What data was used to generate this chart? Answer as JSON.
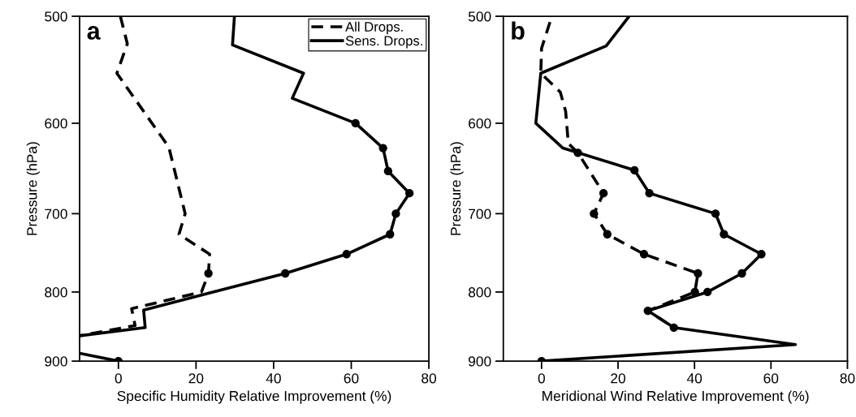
{
  "chart_data": [
    {
      "type": "line",
      "xlabel": "Specific Humidity Relative Improvement (%)",
      "ylabel": "Pressure (hPa)",
      "annotations": [
        "a"
      ],
      "xlim": [
        -10,
        80
      ],
      "xticks": [
        0,
        20,
        40,
        60,
        80
      ],
      "ylim": [
        900,
        500
      ],
      "yticks": [
        500,
        600,
        700,
        800,
        900
      ],
      "log": "y",
      "grid": false,
      "legend": "top right",
      "series": [
        {
          "name": "All Drops.",
          "color": "#000000",
          "line_style": "dashed",
          "marker": "none",
          "x": [
            0.5,
            2.3,
            -0.4,
            13.0,
            17.2,
            15.6,
            23.5,
            23.2,
            21.4,
            3.4,
            4.3,
            -10
          ],
          "values": [
            500,
            524,
            551,
            625,
            700,
            725,
            750,
            775,
            800,
            823,
            847,
            862
          ]
        },
        {
          "name": "Sens. Drops.",
          "color": "#000000",
          "line_style": "solid",
          "marker": "none",
          "x": [
            29.9,
            29.4,
            47.7,
            44.8,
            61.1,
            68.2,
            69.5,
            75.0,
            71.5,
            70.0,
            58.8,
            43.0,
            6.5,
            6.9,
            -10,
            null,
            -10,
            0
          ],
          "values": [
            500,
            525,
            551,
            575,
            600,
            626,
            651,
            676,
            700,
            725,
            750,
            775,
            825,
            850,
            862,
            null,
            888,
            900
          ]
        },
        {
          "type": "scatter",
          "color": "#000000",
          "marker": "circle",
          "x": [
            23.2
          ],
          "values": [
            775
          ]
        },
        {
          "type": "scatter",
          "color": "#000000",
          "marker": "circle",
          "x": [
            61.1,
            68.2,
            69.5,
            75.0,
            71.5,
            70.0,
            58.8,
            43.0,
            0
          ],
          "values": [
            600,
            626,
            651,
            676,
            700,
            725,
            750,
            775,
            900
          ]
        }
      ]
    },
    {
      "type": "line",
      "xlabel": "Meridional Wind Relative Improvement (%)",
      "ylabel": "Pressure (hPa)",
      "annotations": [
        "b"
      ],
      "xlim": [
        -10,
        80
      ],
      "xticks": [
        0,
        20,
        40,
        60,
        80
      ],
      "ylim": [
        900,
        500
      ],
      "yticks": [
        500,
        600,
        700,
        800,
        900
      ],
      "log": "y",
      "grid": false,
      "legend": false,
      "series": [
        {
          "color": "#000000",
          "line_style": "dashed",
          "marker": "none",
          "x": [
            2.2,
            0,
            -0.2,
            4.9,
            6.3,
            7.0,
            9.5,
            16.2,
            13.7,
            17.2,
            26.8,
            40.9,
            40.1,
            27.8,
            34.6
          ],
          "values": [
            505,
            528,
            551,
            569,
            588,
            621,
            631,
            676,
            700,
            725,
            750,
            775,
            800,
            826,
            850
          ]
        },
        {
          "color": "#000000",
          "line_style": "solid",
          "marker": "none",
          "x": [
            22.9,
            16.9,
            -0.2,
            -1.5,
            5.6,
            24.3,
            28.2,
            45.5,
            47.7,
            57.5,
            52.4,
            43.4,
            27.8,
            34.6,
            66.4,
            0
          ],
          "values": [
            500,
            526,
            551,
            600,
            626,
            650,
            676,
            700,
            725,
            750,
            775,
            800,
            826,
            850,
            875,
            900
          ]
        },
        {
          "type": "scatter",
          "color": "#000000",
          "marker": "circle",
          "x": [
            9.5,
            16.2,
            13.7,
            17.2,
            26.8,
            40.9,
            40.1
          ],
          "values": [
            631,
            676,
            700,
            725,
            750,
            775,
            800
          ]
        },
        {
          "type": "scatter",
          "color": "#000000",
          "marker": "circle",
          "x": [
            24.3,
            28.2,
            45.5,
            47.7,
            57.5,
            52.4,
            43.4,
            27.8,
            34.6,
            0
          ],
          "values": [
            650,
            676,
            700,
            725,
            750,
            775,
            800,
            826,
            850,
            900
          ]
        }
      ]
    }
  ]
}
